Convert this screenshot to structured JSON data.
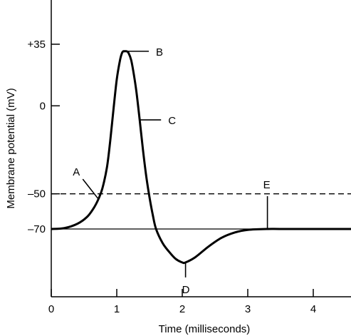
{
  "chart_data": {
    "type": "line",
    "xlabel": "Time (milliseconds)",
    "ylabel": "Membrane potential (mV)",
    "xlim": [
      0,
      4.6
    ],
    "ylim": [
      -150,
      87
    ],
    "x_ticks": [
      0,
      1,
      2,
      3,
      4
    ],
    "y_ticks": [
      {
        "value": 35,
        "label": "+35"
      },
      {
        "value": 0,
        "label": "0"
      },
      {
        "value": -50,
        "label": "–50"
      },
      {
        "value": -70,
        "label": "–70"
      }
    ],
    "grid": false,
    "legend": "none",
    "threshold_line": {
      "value": -50,
      "style": "dashed"
    },
    "resting_line": {
      "value": -70,
      "style": "solid"
    },
    "series": [
      {
        "x": [
          0,
          0.2,
          0.4,
          0.55,
          0.65,
          0.72,
          0.78,
          0.85,
          0.9,
          0.95,
          1.0,
          1.05,
          1.08,
          1.1,
          1.12,
          1.15,
          1.18,
          1.22,
          1.26,
          1.3,
          1.35,
          1.4,
          1.45,
          1.5,
          1.55,
          1.6,
          1.7,
          1.8,
          1.9,
          2.0,
          2.05,
          2.2,
          2.4,
          2.6,
          2.8,
          3.0,
          3.3,
          3.6,
          4.0,
          4.6
        ],
        "y": [
          -70,
          -69.5,
          -67,
          -63,
          -58,
          -53,
          -47,
          -35,
          -20,
          -2,
          15,
          26,
          30,
          31,
          31,
          31,
          30,
          26,
          18,
          8,
          -8,
          -25,
          -40,
          -52,
          -62,
          -70,
          -78,
          -83,
          -87,
          -89,
          -89,
          -86,
          -80,
          -75,
          -72,
          -70.5,
          -70,
          -70,
          -70,
          -70
        ]
      }
    ],
    "annotations": [
      {
        "label": "A",
        "x": 0.72,
        "y": -53
      },
      {
        "label": "B",
        "x": 1.12,
        "y": 31
      },
      {
        "label": "C",
        "x": 1.35,
        "y": -8
      },
      {
        "label": "D",
        "x": 2.05,
        "y": -89
      },
      {
        "label": "E",
        "x": 3.3,
        "y": -70
      }
    ]
  }
}
